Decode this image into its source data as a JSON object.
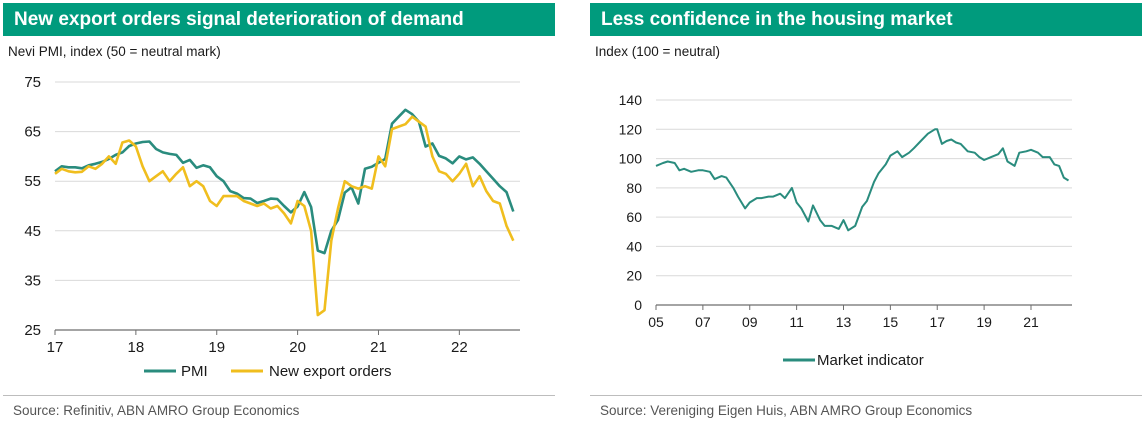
{
  "charts": [
    {
      "title": "New export orders signal deterioration of demand",
      "subtitle": "Nevi PMI, index (50 = neutral mark)",
      "source": "Source: Refinitiv, ABN AMRO Group Economics",
      "chart_data": {
        "type": "line",
        "y_ticks": [
          "75",
          "65",
          "55",
          "45",
          "35",
          "25"
        ],
        "ylim": [
          25,
          75
        ],
        "x_tick_labels": [
          "17",
          "18",
          "19",
          "20",
          "21",
          "22"
        ],
        "xlim": [
          2017.0,
          2022.75
        ],
        "grid": "horizontal",
        "legend_position": "bottom",
        "series": [
          {
            "name": "PMI",
            "color": "#2a8c7e",
            "x": [
              2017.0,
              2017.083,
              2017.167,
              2017.25,
              2017.333,
              2017.417,
              2017.5,
              2017.583,
              2017.667,
              2017.75,
              2017.833,
              2017.917,
              2018.0,
              2018.083,
              2018.167,
              2018.25,
              2018.333,
              2018.417,
              2018.5,
              2018.583,
              2018.667,
              2018.75,
              2018.833,
              2018.917,
              2019.0,
              2019.083,
              2019.167,
              2019.25,
              2019.333,
              2019.417,
              2019.5,
              2019.583,
              2019.667,
              2019.75,
              2019.833,
              2019.917,
              2020.0,
              2020.083,
              2020.167,
              2020.25,
              2020.333,
              2020.417,
              2020.5,
              2020.583,
              2020.667,
              2020.75,
              2020.833,
              2020.917,
              2021.0,
              2021.083,
              2021.167,
              2021.25,
              2021.333,
              2021.417,
              2021.5,
              2021.583,
              2021.667,
              2021.75,
              2021.833,
              2021.917,
              2022.0,
              2022.083,
              2022.167,
              2022.25,
              2022.333,
              2022.417,
              2022.5,
              2022.583,
              2022.667
            ],
            "values": [
              57,
              58,
              57.8,
              57.8,
              57.6,
              58.2,
              58.5,
              58.9,
              59.5,
              60.3,
              60.8,
              62.1,
              62.6,
              62.9,
              63,
              61.5,
              60.8,
              60.5,
              60.3,
              58.7,
              59.3,
              57.7,
              58.2,
              57.8,
              56,
              55,
              53,
              52.5,
              51.6,
              51.5,
              50.6,
              51,
              51.5,
              51.4,
              50,
              48.7,
              49.9,
              52.8,
              49.8,
              41,
              40.5,
              45,
              47.2,
              52.7,
              53.8,
              50.5,
              57.5,
              57.9,
              58.7,
              59.5,
              66.6,
              68,
              69.4,
              68.5,
              67,
              62,
              62.6,
              60.1,
              59.6,
              58.6,
              60,
              59.4,
              59.8,
              58.5,
              57,
              55.5,
              54,
              52.8,
              48.9
            ]
          },
          {
            "name": "New export orders",
            "color": "#f0be1e",
            "x": [
              2017.0,
              2017.083,
              2017.167,
              2017.25,
              2017.333,
              2017.417,
              2017.5,
              2017.583,
              2017.667,
              2017.75,
              2017.833,
              2017.917,
              2018.0,
              2018.083,
              2018.167,
              2018.25,
              2018.333,
              2018.417,
              2018.5,
              2018.583,
              2018.667,
              2018.75,
              2018.833,
              2018.917,
              2019.0,
              2019.083,
              2019.167,
              2019.25,
              2019.333,
              2019.417,
              2019.5,
              2019.583,
              2019.667,
              2019.75,
              2019.833,
              2019.917,
              2020.0,
              2020.083,
              2020.167,
              2020.25,
              2020.333,
              2020.417,
              2020.5,
              2020.583,
              2020.667,
              2020.75,
              2020.833,
              2020.917,
              2021.0,
              2021.083,
              2021.167,
              2021.25,
              2021.333,
              2021.417,
              2021.5,
              2021.583,
              2021.667,
              2021.75,
              2021.833,
              2021.917,
              2022.0,
              2022.083,
              2022.167,
              2022.25,
              2022.333,
              2022.417,
              2022.5,
              2022.583,
              2022.667
            ],
            "values": [
              56.5,
              57.5,
              57,
              56.8,
              56.9,
              58,
              57.5,
              58.5,
              60,
              58.5,
              62.8,
              63.2,
              62,
              58,
              55,
              56,
              57,
              55,
              56.5,
              57.8,
              54,
              55,
              54,
              51,
              50,
              52,
              52,
              52,
              51,
              50.5,
              50,
              50.5,
              49.5,
              50,
              48.5,
              46.5,
              51,
              50,
              45,
              28,
              29,
              43,
              49.5,
              55,
              54,
              53.5,
              54,
              53.5,
              60,
              58,
              65.5,
              66,
              66.5,
              68,
              67,
              66,
              60,
              57,
              56.5,
              55,
              56.5,
              58.5,
              54,
              56,
              53,
              51,
              50.5,
              46,
              43
            ]
          }
        ]
      }
    },
    {
      "title": "Less confidence in the housing market",
      "subtitle": "Index (100 = neutral)",
      "source": "Source: Vereniging Eigen Huis, ABN AMRO Group Economics",
      "chart_data": {
        "type": "line",
        "y_ticks": [
          "140",
          "120",
          "100",
          "80",
          "60",
          "40",
          "20",
          "0"
        ],
        "ylim": [
          0,
          140
        ],
        "x_tick_labels": [
          "05",
          "07",
          "09",
          "11",
          "13",
          "15",
          "17",
          "19",
          "21"
        ],
        "xlim": [
          2005.0,
          2022.75
        ],
        "grid": "horizontal",
        "legend_position": "bottom",
        "series": [
          {
            "name": "Market indicator",
            "color": "#2a8c7e",
            "x": [
              2005.0,
              2005.3,
              2005.5,
              2005.8,
              2006.0,
              2006.2,
              2006.5,
              2006.8,
              2007.0,
              2007.3,
              2007.5,
              2007.8,
              2008.0,
              2008.3,
              2008.5,
              2008.8,
              2009.0,
              2009.3,
              2009.5,
              2009.8,
              2010.0,
              2010.3,
              2010.5,
              2010.8,
              2011.0,
              2011.2,
              2011.5,
              2011.7,
              2012.0,
              2012.2,
              2012.5,
              2012.8,
              2013.0,
              2013.2,
              2013.5,
              2013.8,
              2014.0,
              2014.3,
              2014.5,
              2014.8,
              2015.0,
              2015.3,
              2015.5,
              2015.8,
              2016.0,
              2016.3,
              2016.6,
              2016.9,
              2017.0,
              2017.2,
              2017.4,
              2017.6,
              2017.8,
              2018.0,
              2018.3,
              2018.6,
              2018.8,
              2019.0,
              2019.3,
              2019.6,
              2019.8,
              2020.0,
              2020.3,
              2020.5,
              2020.8,
              2021.0,
              2021.3,
              2021.5,
              2021.8,
              2022.0,
              2022.2,
              2022.4,
              2022.6
            ],
            "values": [
              95,
              97,
              98,
              97,
              92,
              93,
              91,
              92,
              92,
              91,
              86,
              88,
              87,
              80,
              74,
              66,
              70,
              73,
              73,
              74,
              74,
              76,
              73,
              80,
              70,
              66,
              57,
              68,
              58,
              54,
              54,
              52,
              58,
              51,
              54,
              67,
              71,
              84,
              90,
              96,
              102,
              105,
              101,
              104,
              107,
              112,
              117,
              120,
              120,
              110,
              112,
              113,
              111,
              110,
              105,
              104,
              101,
              99,
              101,
              103,
              107,
              98,
              95,
              104,
              105,
              106,
              104,
              101,
              101,
              96,
              95,
              87,
              85
            ]
          }
        ]
      }
    }
  ]
}
